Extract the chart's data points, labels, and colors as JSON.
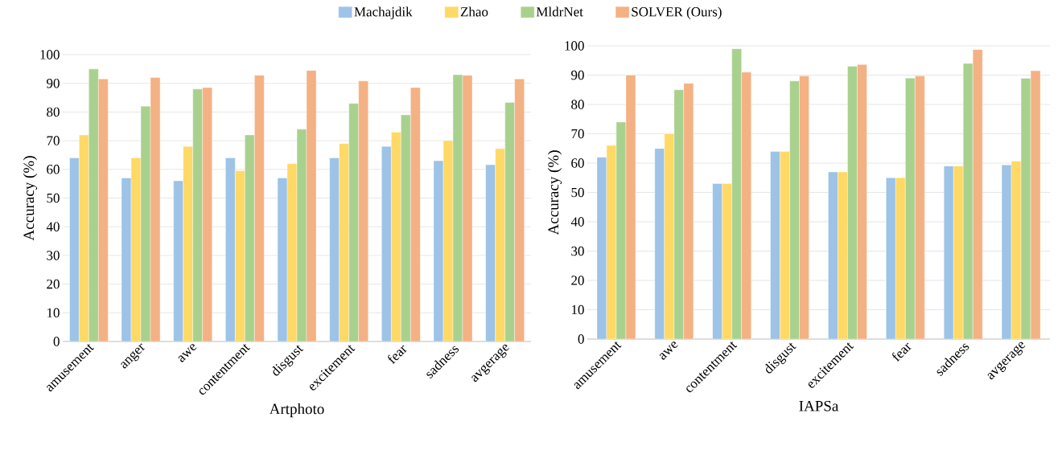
{
  "chart_data": [
    {
      "type": "bar",
      "xlabel": "Artphoto",
      "ylabel": "Accuracy (%)",
      "categories": [
        "amusement",
        "anger",
        "awe",
        "contentment",
        "disgust",
        "excitement",
        "fear",
        "sadness",
        "avgerage"
      ],
      "series": [
        {
          "name": "Machajdik",
          "color": "#9dc3e6",
          "values": [
            64,
            57,
            56,
            64,
            57,
            64,
            68,
            63,
            61.6
          ]
        },
        {
          "name": "Zhao",
          "color": "#ffd966",
          "values": [
            72,
            64,
            68,
            59.5,
            62,
            69,
            73,
            70,
            67.2
          ]
        },
        {
          "name": "MldrNet",
          "color": "#a9d18e",
          "values": [
            95,
            82,
            88,
            72,
            74,
            83,
            79,
            93,
            83.3
          ]
        },
        {
          "name": "SOLVER (Ours)",
          "color": "#f4b183",
          "values": [
            91.5,
            92,
            88.5,
            92.8,
            94.5,
            90.8,
            88.5,
            92.8,
            91.5
          ]
        }
      ],
      "ylim": [
        0,
        100
      ],
      "yticks": [
        0,
        10,
        20,
        30,
        40,
        50,
        60,
        70,
        80,
        90,
        100
      ],
      "grid": "y",
      "legend": "top"
    },
    {
      "type": "bar",
      "xlabel": "IAPSa",
      "ylabel": "Accuracy (%)",
      "categories": [
        "amusement",
        "awe",
        "contentment",
        "disgust",
        "excitement",
        "fear",
        "sadness",
        "avgerage"
      ],
      "series": [
        {
          "color": "#9dc3e6",
          "values": [
            62,
            65,
            53,
            64,
            57,
            55,
            59,
            59.4
          ]
        },
        {
          "color": "#ffd966",
          "values": [
            66,
            70,
            53,
            64,
            57,
            55,
            59,
            60.7
          ]
        },
        {
          "color": "#a9d18e",
          "values": [
            74,
            85,
            99,
            88,
            93,
            89,
            94,
            88.9
          ]
        },
        {
          "color": "#f4b183",
          "values": [
            90,
            87.2,
            91,
            89.7,
            93.6,
            89.7,
            98.7,
            91.5
          ]
        }
      ],
      "ylim": [
        0,
        100
      ],
      "yticks": [
        0,
        10,
        20,
        30,
        40,
        50,
        60,
        70,
        80,
        90,
        100
      ],
      "grid": "y"
    }
  ]
}
